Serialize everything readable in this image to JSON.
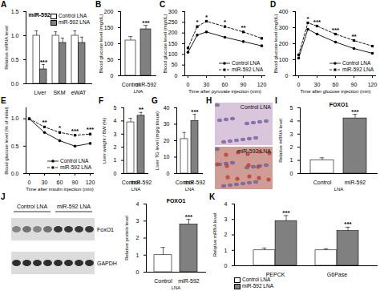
{
  "chart_data": [
    {
      "panel": "A",
      "type": "bar",
      "title": "miR-592",
      "ylabel": "Relative mRNA level",
      "categories": [
        "Liver",
        "SKM",
        "eWAT"
      ],
      "series": [
        {
          "name": "Control LNA",
          "color": "#ffffff",
          "values": [
            1.0,
            1.0,
            1.0
          ],
          "errors": [
            0.1,
            0.08,
            0.1
          ]
        },
        {
          "name": "miR-592 LNA",
          "color": "#808080",
          "values": [
            0.3,
            0.85,
            0.85
          ],
          "errors": [
            0.1,
            0.1,
            0.12
          ]
        }
      ],
      "ylim": [
        0,
        1.5
      ],
      "yticks": [
        {
          "value": 0,
          "label": "0.0"
        },
        {
          "value": 0.5,
          "label": "0.5"
        },
        {
          "value": 1,
          "label": "1.0"
        },
        {
          "value": 1.5,
          "label": "1.5"
        }
      ],
      "legend": "top-right",
      "annotations": [
        {
          "category": "Liver",
          "series": "miR-592 LNA",
          "text": "***"
        }
      ]
    },
    {
      "panel": "B",
      "type": "bar",
      "ylabel": "Blood glucose level (mg/dL)",
      "xlabel": "LNA",
      "categories": [
        "Control",
        "miR-592"
      ],
      "values": [
        110,
        145
      ],
      "errors": [
        12,
        12
      ],
      "colors": [
        "#ffffff",
        "#808080"
      ],
      "ylim": [
        0,
        200
      ],
      "yticks": [
        0,
        50,
        100,
        150,
        200
      ],
      "annotations": [
        {
          "category": "miR-592",
          "text": "***"
        }
      ]
    },
    {
      "panel": "C",
      "type": "line",
      "ylabel": "Blood glucose level (mg/dL)",
      "xlabel": "Time after pyruvate injection (min)",
      "x": [
        0,
        15,
        30,
        60,
        90,
        120
      ],
      "series": [
        {
          "name": "Control LNA",
          "color": "#000000",
          "marker": "circle",
          "line_style": "solid",
          "values": [
            110,
            190,
            205,
            180,
            160,
            140
          ]
        },
        {
          "name": "miR-592 LNA",
          "color": "#000000",
          "marker": "square",
          "line_style": "dashed",
          "values": [
            130,
            230,
            255,
            230,
            205,
            175
          ]
        }
      ],
      "xlim": [
        0,
        120
      ],
      "xticks": [
        0,
        30,
        60,
        90,
        120
      ],
      "ylim": [
        0,
        300
      ],
      "yticks": [
        0,
        50,
        100,
        150,
        200,
        250,
        300
      ],
      "legend": "bottom-right",
      "annotations": [
        {
          "x": 15,
          "text": "*"
        },
        {
          "x": 30,
          "text": "*"
        },
        {
          "x": 60,
          "text": "*"
        },
        {
          "x": 90,
          "text": "**"
        }
      ]
    },
    {
      "panel": "D",
      "type": "line",
      "ylabel": "Blood glucose level (mg/dL)",
      "xlabel": "Time after glucose injection (min)",
      "x": [
        0,
        15,
        30,
        60,
        90,
        120
      ],
      "series": [
        {
          "name": "Control LNA",
          "color": "#000000",
          "marker": "circle",
          "line_style": "solid",
          "values": [
            110,
            290,
            260,
            210,
            170,
            140
          ]
        },
        {
          "name": "miR-592 LNA",
          "color": "#000000",
          "marker": "square",
          "line_style": "dashed",
          "values": [
            130,
            330,
            310,
            260,
            220,
            185
          ]
        }
      ],
      "xlim": [
        0,
        120
      ],
      "xticks": [
        0,
        30,
        60,
        90,
        120
      ],
      "ylim": [
        0,
        400
      ],
      "yticks": [
        0,
        100,
        200,
        300,
        400
      ],
      "legend": "bottom-right",
      "annotations": [
        {
          "x": 15,
          "text": "*"
        },
        {
          "x": 30,
          "text": "***"
        },
        {
          "x": 60,
          "text": "***"
        },
        {
          "x": 90,
          "text": "**"
        }
      ]
    },
    {
      "panel": "E",
      "type": "line",
      "ylabel": "Blood glucose level (% of initial)",
      "xlabel": "Time after insulin injection (min)",
      "x": [
        0,
        30,
        60,
        90,
        120
      ],
      "series": [
        {
          "name": "Control LNA",
          "color": "#000000",
          "marker": "circle",
          "line_style": "solid",
          "values": [
            1.0,
            0.75,
            0.6,
            0.5,
            0.55
          ]
        },
        {
          "name": "miR-592 LNA",
          "color": "#000000",
          "marker": "square",
          "line_style": "dashed",
          "values": [
            1.0,
            0.85,
            0.75,
            0.7,
            0.72
          ]
        }
      ],
      "xlim": [
        0,
        120
      ],
      "xticks": [
        0,
        30,
        60,
        90,
        120
      ],
      "ylim": [
        0,
        1.2
      ],
      "yticks": [
        {
          "value": 0,
          "label": "0.0"
        },
        {
          "value": 0.5,
          "label": "0.5"
        },
        {
          "value": 1,
          "label": "1.0"
        }
      ],
      "legend": "bottom-right",
      "annotations": [
        {
          "x": 30,
          "text": "**"
        },
        {
          "x": 60,
          "text": "*"
        },
        {
          "x": 90,
          "text": "***"
        },
        {
          "x": 120,
          "text": "***"
        }
      ]
    },
    {
      "panel": "F",
      "type": "bar",
      "ylabel": "Liver weight / BW (%)",
      "xlabel": "LNA",
      "categories": [
        "Control",
        "miR-592"
      ],
      "values": [
        3.9,
        4.4
      ],
      "errors": [
        0.3,
        0.25
      ],
      "colors": [
        "#ffffff",
        "#808080"
      ],
      "ylim": [
        0,
        5
      ],
      "yticks": [
        0,
        1,
        2,
        3,
        4,
        5
      ],
      "annotations": [
        {
          "category": "miR-592",
          "text": "**"
        }
      ]
    },
    {
      "panel": "G",
      "type": "bar",
      "ylabel": "Liver TG level (mg/g tissue)",
      "xlabel": "LNA",
      "categories": [
        "Control",
        "miR-592"
      ],
      "values": [
        21,
        32
      ],
      "errors": [
        4,
        4
      ],
      "colors": [
        "#ffffff",
        "#808080"
      ],
      "ylim": [
        0,
        40
      ],
      "yticks": [
        0,
        10,
        20,
        30,
        40
      ],
      "annotations": [
        {
          "category": "miR-592",
          "text": "***"
        }
      ]
    },
    {
      "panel": "H",
      "type": "image",
      "labels": [
        "Control LNA",
        "miR-592 LNA"
      ]
    },
    {
      "panel": "I",
      "type": "bar",
      "title": "FOXO1",
      "ylabel": "Relative mRNA level",
      "xlabel": "LNA",
      "categories": [
        "Control",
        "miR-592"
      ],
      "values": [
        1.0,
        4.2
      ],
      "errors": [
        0.2,
        0.3
      ],
      "colors": [
        "#ffffff",
        "#808080"
      ],
      "ylim": [
        0,
        5
      ],
      "yticks": [
        0,
        1,
        2,
        3,
        4,
        5
      ],
      "annotations": [
        {
          "category": "miR-592",
          "text": "***"
        }
      ]
    },
    {
      "panel": "J",
      "type": "blot",
      "columns": [
        "Control LNA",
        "miR-592 LNA"
      ],
      "rows": [
        "FoxO1",
        "GAPDH"
      ]
    },
    {
      "type": "bar",
      "title": "FOXO1",
      "ylabel": "Relative protein level",
      "xlabel": "LNA",
      "categories": [
        "Control",
        "miR-592"
      ],
      "values": [
        1.0,
        2.8
      ],
      "errors": [
        0.45,
        0.3
      ],
      "colors": [
        "#ffffff",
        "#808080"
      ],
      "ylim": [
        0,
        4
      ],
      "yticks": [
        0,
        1,
        2,
        3,
        4
      ],
      "annotations": [
        {
          "category": "miR-592",
          "text": "***"
        }
      ]
    },
    {
      "panel": "K",
      "type": "bar",
      "ylabel": "Relative mRNA level",
      "categories": [
        "PEPCK",
        "G6Pase"
      ],
      "series": [
        {
          "name": "Control LNA",
          "color": "#ffffff",
          "values": [
            1.0,
            1.0
          ],
          "errors": [
            0.15,
            0.1
          ]
        },
        {
          "name": "miR-592 LNA",
          "color": "#808080",
          "values": [
            2.9,
            2.25
          ],
          "errors": [
            0.35,
            0.25
          ]
        }
      ],
      "ylim": [
        0,
        4
      ],
      "yticks": [
        0,
        1,
        2,
        3,
        4
      ],
      "legend": "bottom",
      "annotations": [
        {
          "category": "PEPCK",
          "series": "miR-592 LNA",
          "text": "***"
        },
        {
          "category": "G6Pase",
          "series": "miR-592 LNA",
          "text": "***"
        }
      ]
    }
  ]
}
